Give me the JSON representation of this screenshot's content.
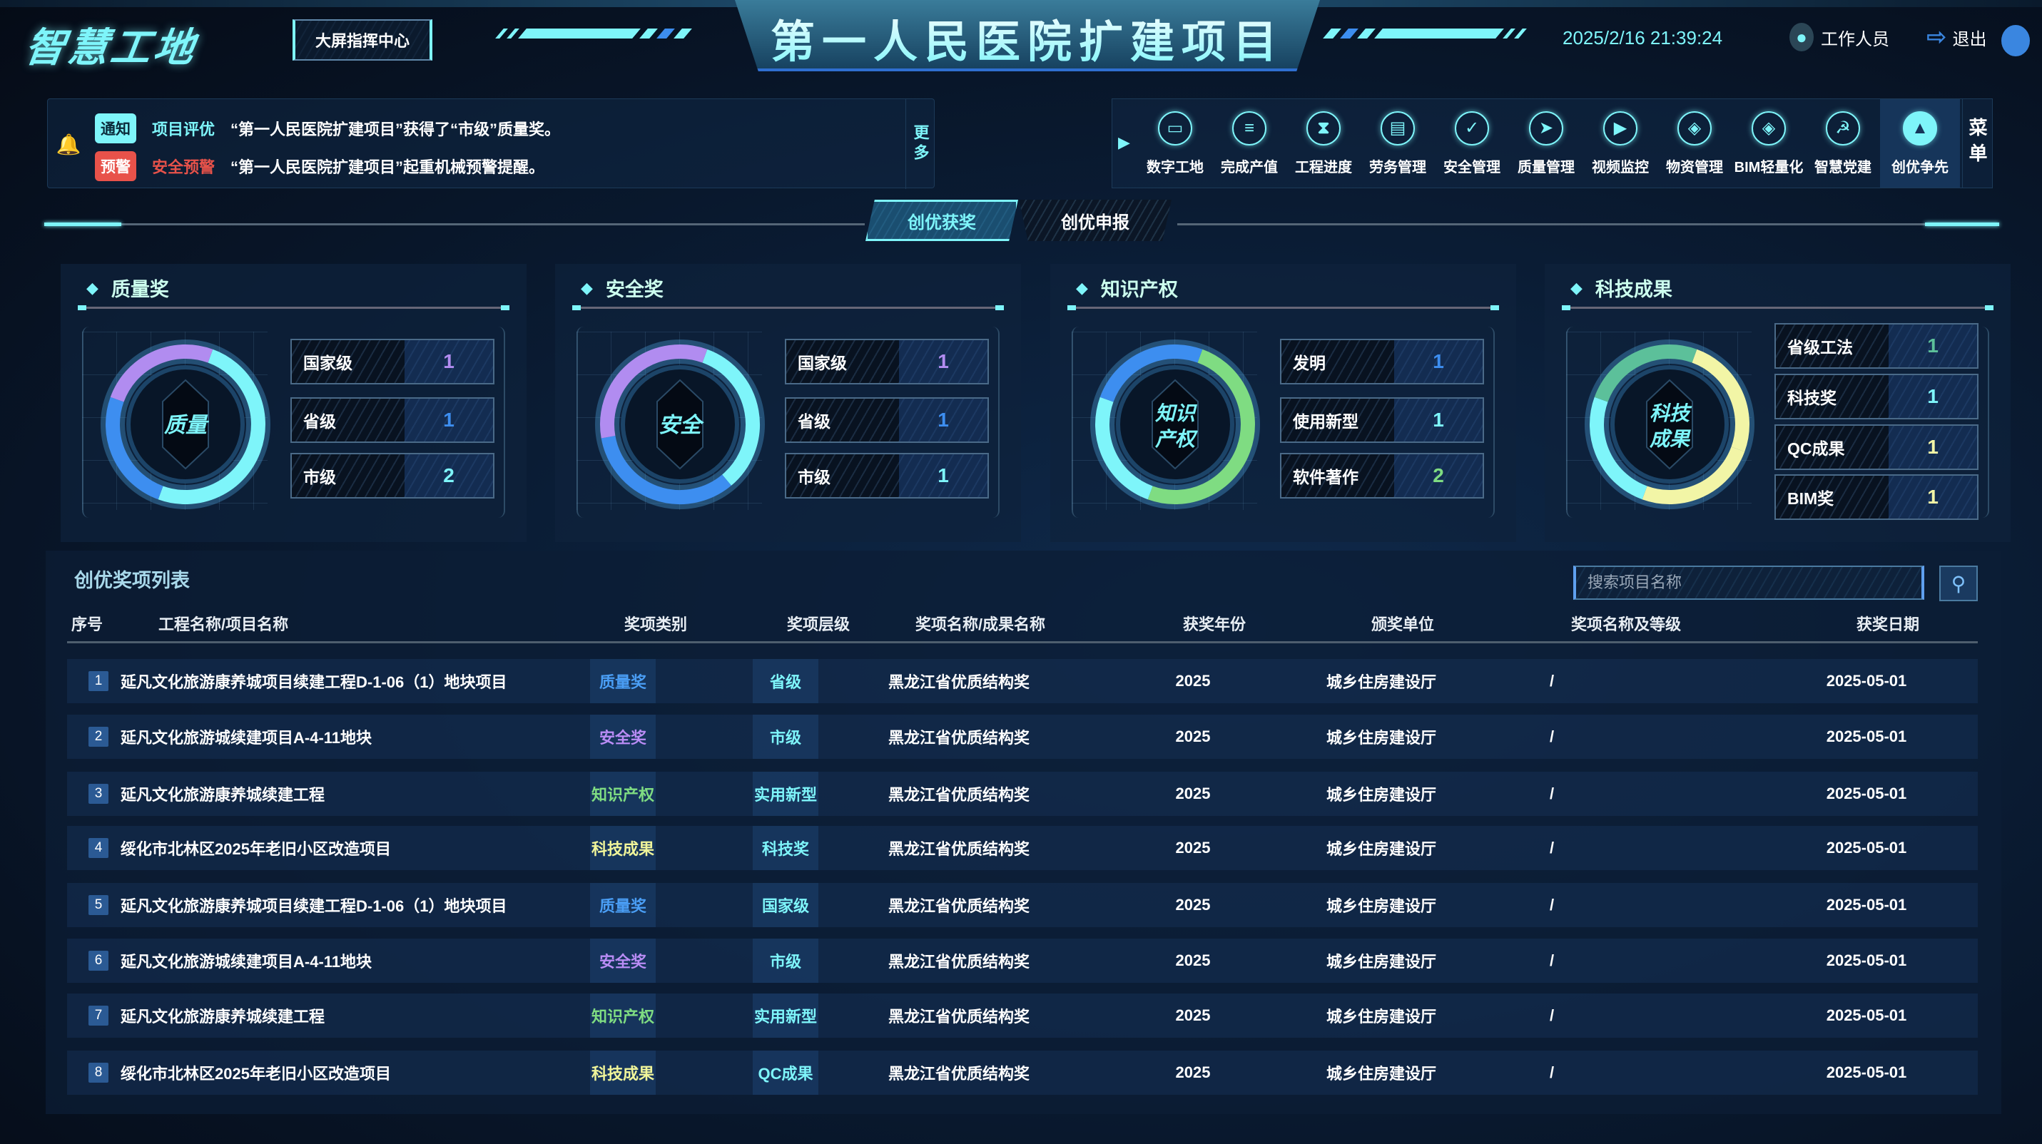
{
  "header": {
    "logo": "智慧工地",
    "command_center_button": "大屏指挥中心",
    "title": "第一人民医院扩建项目",
    "datetime": "2025/2/16 21:39:24",
    "user_label": "工作人员",
    "logout_label": "退出"
  },
  "notices": [
    {
      "tag": "通知",
      "tag_color": "#7ef5fa",
      "category": "项目评优",
      "category_color": "#7ef5fa",
      "text": "“第一人民医院扩建项目”获得了“市级”质量奖。"
    },
    {
      "tag": "预警",
      "tag_color": "#e8524a",
      "category": "安全预警",
      "category_color": "#e8524a",
      "text": "“第一人民医院扩建项目”起重机械预警提醒。"
    }
  ],
  "notice_more": "更多",
  "menu": {
    "label": "菜单",
    "items": [
      {
        "label": "数字工地",
        "icon": "monitor-icon",
        "glyph": "▭"
      },
      {
        "label": "完成产值",
        "icon": "coins-icon",
        "glyph": "≡"
      },
      {
        "label": "工程进度",
        "icon": "hourglass-icon",
        "glyph": "⧗"
      },
      {
        "label": "劳务管理",
        "icon": "id-card-icon",
        "glyph": "▤"
      },
      {
        "label": "安全管理",
        "icon": "shield-check-icon",
        "glyph": "✓"
      },
      {
        "label": "质量管理",
        "icon": "paper-plane-icon",
        "glyph": "➤"
      },
      {
        "label": "视频监控",
        "icon": "video-icon",
        "glyph": "▶"
      },
      {
        "label": "物资管理",
        "icon": "box-icon",
        "glyph": "◈"
      },
      {
        "label": "BIM轻量化",
        "icon": "cube-icon",
        "glyph": "◈"
      },
      {
        "label": "智慧党建",
        "icon": "party-icon",
        "glyph": "☭"
      },
      {
        "label": "创优争先",
        "icon": "mountain-icon",
        "glyph": "▲",
        "active": true
      }
    ]
  },
  "tabs": [
    {
      "label": "创优获奖",
      "active": true
    },
    {
      "label": "创优申报",
      "active": false
    }
  ],
  "panels": [
    {
      "title": "质量奖",
      "center": "质量",
      "stats": [
        {
          "label": "国家级",
          "value": 1,
          "color": "#b18cf0"
        },
        {
          "label": "省级",
          "value": 1,
          "color": "#3d8ef0"
        },
        {
          "label": "市级",
          "value": 2,
          "color": "#7ef5fa"
        }
      ]
    },
    {
      "title": "安全奖",
      "center": "安全",
      "stats": [
        {
          "label": "国家级",
          "value": 1,
          "color": "#b18cf0"
        },
        {
          "label": "省级",
          "value": 1,
          "color": "#3d8ef0"
        },
        {
          "label": "市级",
          "value": 1,
          "color": "#7ef5fa"
        }
      ]
    },
    {
      "title": "知识产权",
      "center": "知识产权",
      "stats": [
        {
          "label": "发明",
          "value": 1,
          "color": "#3d8ef0"
        },
        {
          "label": "使用新型",
          "value": 1,
          "color": "#7ef5fa"
        },
        {
          "label": "软件著作",
          "value": 2,
          "color": "#7fdc82"
        }
      ]
    },
    {
      "title": "科技成果",
      "center": "科技成果",
      "stats": [
        {
          "label": "省级工法",
          "value": 1,
          "color": "#5cc09a"
        },
        {
          "label": "科技奖",
          "value": 1,
          "color": "#7ef5fa"
        },
        {
          "label": "QC成果",
          "value": 1,
          "color": "#f2f5a6"
        },
        {
          "label": "BIM奖",
          "value": 1,
          "color": "#f2f5a6"
        }
      ]
    }
  ],
  "table": {
    "title": "创优奖项列表",
    "search_placeholder": "搜索项目名称",
    "columns": [
      "序号",
      "工程名称/项目名称",
      "奖项类别",
      "奖项层级",
      "奖项名称/成果名称",
      "获奖年份",
      "颁奖单位",
      "奖项名称及等级",
      "获奖日期"
    ],
    "category_colors": {
      "质量奖": "#4a9ef5",
      "安全奖": "#b98cf5",
      "知识产权": "#7fdc82",
      "科技成果": "#f0f59a"
    },
    "level_color": "#7ef5fa",
    "rows": [
      {
        "no": "1",
        "project": "延凡文化旅游康养城项目续建工程D-1-06（1）地块项目",
        "category": "质量奖",
        "level": "省级",
        "award": "黑龙江省优质结构奖",
        "year": "2025",
        "issuer": "城乡住房建设厅",
        "grade": "/",
        "date": "2025-05-01"
      },
      {
        "no": "2",
        "project": "延凡文化旅游城续建项目A-4-11地块",
        "category": "安全奖",
        "level": "市级",
        "award": "黑龙江省优质结构奖",
        "year": "2025",
        "issuer": "城乡住房建设厅",
        "grade": "/",
        "date": "2025-05-01"
      },
      {
        "no": "3",
        "project": "延凡文化旅游康养城续建工程",
        "category": "知识产权",
        "level": "实用新型",
        "award": "黑龙江省优质结构奖",
        "year": "2025",
        "issuer": "城乡住房建设厅",
        "grade": "/",
        "date": "2025-05-01"
      },
      {
        "no": "4",
        "project": "绥化市北林区2025年老旧小区改造项目",
        "category": "科技成果",
        "level": "科技奖",
        "award": "黑龙江省优质结构奖",
        "year": "2025",
        "issuer": "城乡住房建设厅",
        "grade": "/",
        "date": "2025-05-01"
      },
      {
        "no": "5",
        "project": "延凡文化旅游康养城项目续建工程D-1-06（1）地块项目",
        "category": "质量奖",
        "level": "国家级",
        "award": "黑龙江省优质结构奖",
        "year": "2025",
        "issuer": "城乡住房建设厅",
        "grade": "/",
        "date": "2025-05-01"
      },
      {
        "no": "6",
        "project": "延凡文化旅游城续建项目A-4-11地块",
        "category": "安全奖",
        "level": "市级",
        "award": "黑龙江省优质结构奖",
        "year": "2025",
        "issuer": "城乡住房建设厅",
        "grade": "/",
        "date": "2025-05-01"
      },
      {
        "no": "7",
        "project": "延凡文化旅游康养城续建工程",
        "category": "知识产权",
        "level": "实用新型",
        "award": "黑龙江省优质结构奖",
        "year": "2025",
        "issuer": "城乡住房建设厅",
        "grade": "/",
        "date": "2025-05-01"
      },
      {
        "no": "8",
        "project": "绥化市北林区2025年老旧小区改造项目",
        "category": "科技成果",
        "level": "QC成果",
        "award": "黑龙江省优质结构奖",
        "year": "2025",
        "issuer": "城乡住房建设厅",
        "grade": "/",
        "date": "2025-05-01"
      }
    ]
  }
}
